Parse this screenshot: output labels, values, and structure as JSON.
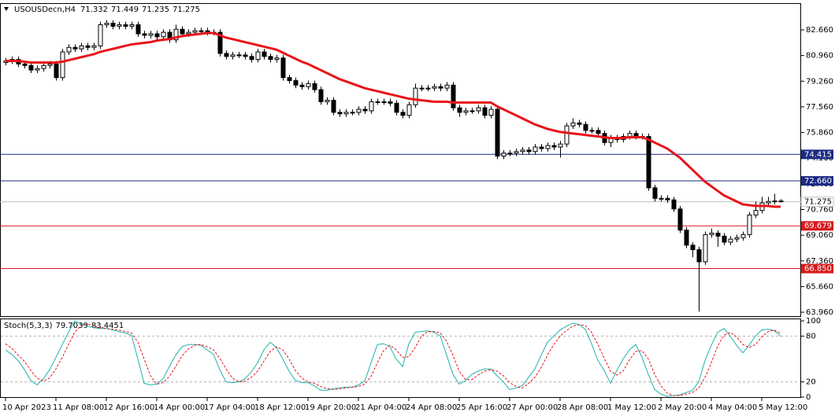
{
  "chart_data": {
    "type": "candlestick",
    "title": "USOUSDecn,H4",
    "categories": [
      "10 Apr 2023",
      null,
      null,
      null,
      null,
      null,
      null,
      null,
      "11 Apr 08:00",
      null,
      null,
      null,
      null,
      null,
      null,
      null,
      "12 Apr 16:00",
      null,
      null,
      null,
      null,
      null,
      null,
      null,
      "14 Apr 00:00",
      null,
      null,
      null,
      null,
      null,
      null,
      null,
      "17 Apr 04:00",
      null,
      null,
      null,
      null,
      null,
      null,
      null,
      "18 Apr 12:00",
      null,
      null,
      null,
      null,
      null,
      null,
      null,
      "19 Apr 20:00",
      null,
      null,
      null,
      null,
      null,
      null,
      null,
      "21 Apr 04:00",
      null,
      null,
      null,
      null,
      null,
      null,
      null,
      "24 Apr 08:00",
      null,
      null,
      null,
      null,
      null,
      null,
      null,
      "25 Apr 16:00",
      null,
      null,
      null,
      null,
      null,
      null,
      null,
      "27 Apr 00:00",
      null,
      null,
      null,
      null,
      null,
      null,
      null,
      "28 Apr 08:00",
      null,
      null,
      null,
      null,
      null,
      null,
      null,
      "1 May 12:00",
      null,
      null,
      null,
      null,
      null,
      null,
      null,
      "2 May 20:00",
      null,
      null,
      null,
      null,
      null,
      null,
      null,
      "4 May 04:00",
      null,
      null,
      null,
      null,
      null,
      null,
      null,
      "5 May 12:00",
      null,
      null,
      null
    ],
    "open": [
      80.5,
      80.6,
      80.7,
      80.4,
      80.3,
      80.0,
      80.1,
      80.3,
      80.4,
      79.5,
      81.2,
      81.5,
      81.4,
      81.6,
      81.5,
      81.6,
      83.0,
      83.1,
      82.9,
      83.0,
      82.9,
      83.0,
      82.4,
      82.3,
      82.4,
      82.2,
      82.5,
      82.0,
      82.7,
      82.4,
      82.5,
      82.6,
      82.6,
      82.5,
      82.5,
      81.1,
      80.9,
      81.0,
      81.0,
      80.9,
      80.7,
      81.2,
      80.9,
      80.7,
      80.8,
      79.5,
      79.3,
      79.0,
      78.9,
      79.1,
      78.7,
      77.9,
      78.0,
      77.2,
      77.1,
      77.2,
      77.2,
      77.4,
      77.3,
      77.9,
      77.9,
      77.9,
      77.8,
      77.2,
      77.0,
      77.7,
      78.8,
      78.8,
      78.8,
      78.9,
      78.8,
      79.0,
      77.5,
      77.2,
      77.3,
      77.3,
      77.5,
      77.0,
      77.4,
      74.3,
      74.5,
      74.5,
      74.6,
      74.7,
      74.6,
      74.9,
      74.8,
      75.0,
      74.9,
      75.1,
      76.3,
      76.5,
      76.4,
      76.0,
      76.0,
      75.8,
      75.2,
      75.5,
      75.4,
      75.6,
      75.8,
      75.6,
      75.6,
      72.2,
      71.5,
      71.5,
      71.4,
      70.8,
      69.4,
      68.4,
      68.1,
      67.3,
      69.1,
      69.2,
      69.0,
      68.6,
      68.8,
      68.9,
      69.1,
      70.4,
      70.7,
      71.2,
      71.3,
      71.332
    ],
    "high": [
      80.8,
      80.9,
      80.9,
      80.6,
      80.5,
      80.3,
      80.5,
      80.6,
      80.6,
      81.4,
      81.7,
      81.7,
      81.8,
      81.8,
      81.8,
      83.2,
      83.3,
      83.3,
      83.2,
      83.2,
      83.2,
      83.2,
      82.6,
      82.6,
      82.6,
      82.7,
      82.7,
      83.0,
      82.9,
      82.7,
      82.8,
      82.8,
      82.8,
      82.7,
      82.7,
      81.3,
      81.2,
      81.2,
      81.2,
      81.1,
      81.4,
      81.4,
      81.1,
      81.0,
      81.0,
      79.7,
      79.5,
      79.2,
      79.3,
      79.3,
      78.9,
      78.2,
      78.2,
      77.4,
      77.4,
      77.4,
      77.6,
      77.6,
      78.1,
      78.1,
      78.1,
      78.1,
      78.0,
      77.4,
      77.9,
      79.1,
      79.0,
      79.0,
      79.1,
      79.1,
      79.2,
      79.2,
      77.7,
      77.5,
      77.5,
      77.7,
      77.7,
      77.6,
      77.6,
      74.7,
      74.7,
      74.8,
      74.9,
      74.9,
      75.1,
      75.1,
      75.2,
      75.2,
      75.3,
      76.5,
      76.8,
      76.7,
      76.6,
      76.2,
      76.2,
      76.0,
      75.7,
      75.7,
      75.8,
      76.0,
      76.0,
      75.8,
      75.8,
      72.4,
      71.7,
      71.7,
      71.6,
      71.0,
      69.6,
      68.6,
      68.3,
      69.3,
      69.5,
      69.4,
      69.2,
      69.0,
      69.1,
      69.3,
      70.6,
      71.3,
      71.6,
      71.6,
      71.8,
      71.449
    ],
    "low": [
      80.3,
      80.4,
      80.2,
      80.1,
      79.8,
      79.8,
      79.9,
      80.1,
      79.3,
      79.3,
      81.0,
      81.2,
      81.2,
      81.3,
      81.3,
      81.4,
      82.8,
      82.7,
      82.7,
      82.7,
      82.7,
      82.2,
      82.1,
      82.1,
      82.0,
      82.0,
      81.8,
      81.8,
      82.2,
      82.2,
      82.3,
      82.4,
      82.3,
      82.3,
      80.9,
      80.7,
      80.7,
      80.8,
      80.7,
      80.5,
      80.5,
      80.7,
      80.5,
      80.5,
      79.3,
      79.1,
      78.8,
      78.7,
      78.7,
      78.5,
      77.7,
      77.7,
      77.0,
      76.9,
      76.9,
      77.0,
      77.0,
      77.1,
      77.1,
      77.7,
      77.7,
      77.6,
      77.0,
      76.8,
      76.8,
      77.5,
      78.6,
      78.6,
      78.6,
      78.6,
      78.6,
      77.3,
      76.9,
      77.0,
      77.1,
      77.1,
      76.8,
      76.8,
      74.1,
      74.1,
      74.3,
      74.3,
      74.4,
      74.4,
      74.4,
      74.6,
      74.6,
      74.7,
      74.2,
      74.9,
      76.1,
      76.2,
      75.8,
      75.8,
      75.6,
      75.0,
      74.9,
      75.2,
      75.2,
      75.4,
      75.4,
      75.4,
      72.0,
      71.3,
      71.3,
      71.2,
      70.6,
      69.2,
      68.2,
      67.6,
      64.0,
      67.1,
      68.9,
      68.3,
      68.4,
      68.4,
      68.6,
      68.7,
      68.9,
      70.2,
      70.5,
      71.0,
      71.1,
      71.235
    ],
    "close": [
      80.6,
      80.7,
      80.4,
      80.3,
      80.0,
      80.1,
      80.3,
      80.4,
      79.5,
      81.2,
      81.5,
      81.4,
      81.6,
      81.5,
      81.6,
      83.0,
      83.1,
      82.9,
      83.0,
      82.9,
      83.0,
      82.4,
      82.3,
      82.4,
      82.2,
      82.5,
      82.0,
      82.7,
      82.4,
      82.5,
      82.6,
      82.6,
      82.5,
      82.5,
      81.1,
      80.9,
      81.0,
      81.0,
      80.9,
      80.7,
      81.2,
      80.9,
      80.7,
      80.8,
      79.5,
      79.3,
      79.0,
      78.9,
      79.1,
      78.7,
      77.9,
      78.0,
      77.2,
      77.1,
      77.2,
      77.2,
      77.4,
      77.3,
      77.9,
      77.9,
      77.9,
      77.8,
      77.2,
      77.0,
      77.7,
      78.8,
      78.8,
      78.8,
      78.9,
      78.8,
      79.0,
      77.5,
      77.2,
      77.3,
      77.3,
      77.5,
      77.0,
      77.4,
      74.3,
      74.5,
      74.5,
      74.6,
      74.7,
      74.6,
      74.9,
      74.8,
      75.0,
      74.9,
      75.1,
      76.3,
      76.5,
      76.4,
      76.0,
      76.0,
      75.8,
      75.2,
      75.5,
      75.4,
      75.6,
      75.8,
      75.6,
      75.6,
      72.2,
      71.5,
      71.5,
      71.4,
      70.8,
      69.4,
      68.4,
      68.1,
      67.3,
      69.1,
      69.2,
      69.0,
      68.6,
      68.8,
      68.9,
      69.1,
      70.4,
      70.7,
      71.2,
      71.3,
      71.33,
      71.275
    ],
    "ylim": [
      63.65,
      84.43
    ],
    "yticks": [
      {
        "value": 82.66,
        "label": "82.660"
      },
      {
        "value": 80.96,
        "label": "80.960"
      },
      {
        "value": 79.26,
        "label": "79.260"
      },
      {
        "value": 77.56,
        "label": "77.560"
      },
      {
        "value": 75.86,
        "label": "75.860"
      },
      {
        "value": 74.16,
        "label": "74.160"
      },
      {
        "value": 72.46,
        "label": "72.460"
      },
      {
        "value": 70.76,
        "label": "70.760"
      },
      {
        "value": 69.06,
        "label": "69.060"
      },
      {
        "value": 67.36,
        "label": "67.360"
      },
      {
        "value": 65.66,
        "label": "65.660"
      },
      {
        "value": 63.96,
        "label": "63.960"
      }
    ],
    "ma": {
      "color": "#e8141b",
      "values": [
        80.6,
        80.6,
        80.6,
        80.55,
        80.5,
        80.5,
        80.5,
        80.5,
        80.5,
        80.55,
        80.65,
        80.75,
        80.85,
        80.95,
        81.05,
        81.2,
        81.3,
        81.4,
        81.5,
        81.6,
        81.7,
        81.75,
        81.8,
        81.85,
        81.95,
        82.0,
        82.05,
        82.15,
        82.25,
        82.3,
        82.35,
        82.4,
        82.45,
        82.45,
        82.3,
        82.15,
        82.05,
        81.95,
        81.85,
        81.75,
        81.65,
        81.55,
        81.45,
        81.35,
        81.15,
        80.95,
        80.75,
        80.55,
        80.4,
        80.2,
        80.0,
        79.8,
        79.6,
        79.4,
        79.25,
        79.1,
        78.95,
        78.8,
        78.7,
        78.6,
        78.5,
        78.4,
        78.3,
        78.2,
        78.1,
        78.05,
        78.0,
        77.95,
        77.9,
        77.9,
        77.9,
        77.85,
        77.85,
        77.85,
        77.85,
        77.85,
        77.85,
        77.85,
        77.6,
        77.4,
        77.2,
        77.0,
        76.8,
        76.6,
        76.4,
        76.25,
        76.1,
        76.0,
        75.9,
        75.85,
        75.8,
        75.75,
        75.7,
        75.65,
        75.6,
        75.55,
        75.5,
        75.5,
        75.5,
        75.55,
        75.55,
        75.55,
        75.4,
        75.2,
        75.0,
        74.8,
        74.5,
        74.2,
        73.8,
        73.4,
        73.0,
        72.6,
        72.3,
        72.0,
        71.7,
        71.5,
        71.3,
        71.1,
        71.05,
        71.0,
        71.0,
        71.0,
        70.95,
        70.95
      ]
    },
    "levels": [
      {
        "value": 74.415,
        "label": "74.415",
        "color": "#1c2a86"
      },
      {
        "value": 72.66,
        "label": "72.660",
        "color": "#1c2a86"
      },
      {
        "value": 69.679,
        "label": "69.679",
        "color": "#d7191c"
      },
      {
        "value": 66.85,
        "label": "66.850",
        "color": "#d7191c"
      }
    ],
    "stoch": {
      "title": "Stoch(5,3,3)",
      "ylim": [
        0,
        100
      ],
      "yticks": [
        100,
        80,
        20,
        0
      ],
      "series": [
        {
          "color": "#20b2aa",
          "values": [
            62,
            56,
            48,
            36,
            22,
            16,
            24,
            36,
            52,
            69,
            85,
            100,
            96,
            93,
            91,
            90,
            90,
            88,
            86,
            84,
            81,
            50,
            18,
            16,
            17,
            24,
            40,
            55,
            66,
            69,
            69,
            68,
            62,
            56,
            36,
            20,
            19,
            20,
            24,
            33,
            45,
            62,
            72,
            65,
            50,
            34,
            22,
            19,
            19,
            15,
            9,
            9,
            11,
            12,
            13,
            13,
            16,
            21,
            45,
            69,
            70,
            66,
            50,
            40,
            70,
            85,
            86,
            87,
            85,
            80,
            55,
            30,
            17,
            22,
            30,
            34,
            37,
            37,
            28,
            20,
            10,
            12,
            15,
            26,
            37,
            55,
            72,
            80,
            88,
            93,
            97,
            95,
            89,
            70,
            48,
            35,
            18,
            35,
            50,
            62,
            69,
            52,
            30,
            10,
            4,
            1,
            2,
            3,
            6,
            9,
            20,
            48,
            68,
            85,
            90,
            80,
            68,
            58,
            68,
            80,
            88,
            89,
            87,
            79.7039
          ]
        },
        {
          "color": "#e8141b",
          "values": [
            70,
            64,
            55,
            47,
            35,
            25,
            21,
            25,
            37,
            52,
            69,
            85,
            94,
            96,
            93,
            91,
            90,
            89,
            88,
            86,
            84,
            72,
            50,
            28,
            17,
            19,
            27,
            40,
            54,
            63,
            68,
            69,
            66,
            62,
            51,
            37,
            25,
            20,
            21,
            26,
            34,
            47,
            60,
            66,
            62,
            50,
            35,
            25,
            20,
            18,
            14,
            11,
            10,
            11,
            12,
            13,
            14,
            17,
            27,
            45,
            61,
            68,
            62,
            52,
            53,
            65,
            80,
            86,
            86,
            84,
            73,
            55,
            34,
            23,
            23,
            29,
            34,
            36,
            34,
            28,
            19,
            14,
            12,
            18,
            26,
            39,
            55,
            69,
            80,
            87,
            93,
            95,
            94,
            85,
            69,
            51,
            34,
            29,
            34,
            49,
            60,
            61,
            50,
            30,
            15,
            5,
            2,
            2,
            4,
            6,
            12,
            26,
            45,
            67,
            81,
            85,
            79,
            69,
            65,
            69,
            79,
            86,
            88,
            83.4451
          ]
        }
      ]
    }
  }
}
